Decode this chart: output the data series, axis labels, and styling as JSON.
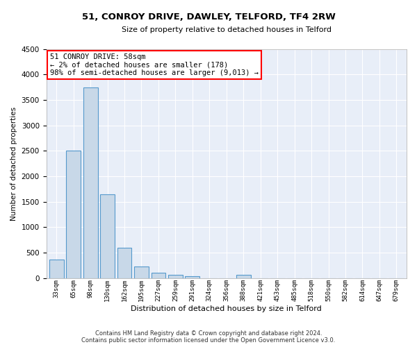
{
  "title": "51, CONROY DRIVE, DAWLEY, TELFORD, TF4 2RW",
  "subtitle": "Size of property relative to detached houses in Telford",
  "xlabel": "Distribution of detached houses by size in Telford",
  "ylabel": "Number of detached properties",
  "bar_color": "#c8d8e8",
  "bar_edge_color": "#5599cc",
  "background_color": "#e8eef8",
  "grid_color": "#ffffff",
  "categories": [
    "33sqm",
    "65sqm",
    "98sqm",
    "130sqm",
    "162sqm",
    "195sqm",
    "227sqm",
    "259sqm",
    "291sqm",
    "324sqm",
    "356sqm",
    "388sqm",
    "421sqm",
    "453sqm",
    "485sqm",
    "518sqm",
    "550sqm",
    "582sqm",
    "614sqm",
    "647sqm",
    "679sqm"
  ],
  "values": [
    370,
    2500,
    3750,
    1640,
    590,
    230,
    105,
    60,
    40,
    0,
    0,
    60,
    0,
    0,
    0,
    0,
    0,
    0,
    0,
    0,
    0
  ],
  "annotation_line1": "51 CONROY DRIVE: 58sqm",
  "annotation_line2": "← 2% of detached houses are smaller (178)",
  "annotation_line3": "98% of semi-detached houses are larger (9,013) →",
  "ylim": [
    0,
    4500
  ],
  "yticks": [
    0,
    500,
    1000,
    1500,
    2000,
    2500,
    3000,
    3500,
    4000,
    4500
  ],
  "footnote_line1": "Contains HM Land Registry data © Crown copyright and database right 2024.",
  "footnote_line2": "Contains public sector information licensed under the Open Government Licence v3.0."
}
